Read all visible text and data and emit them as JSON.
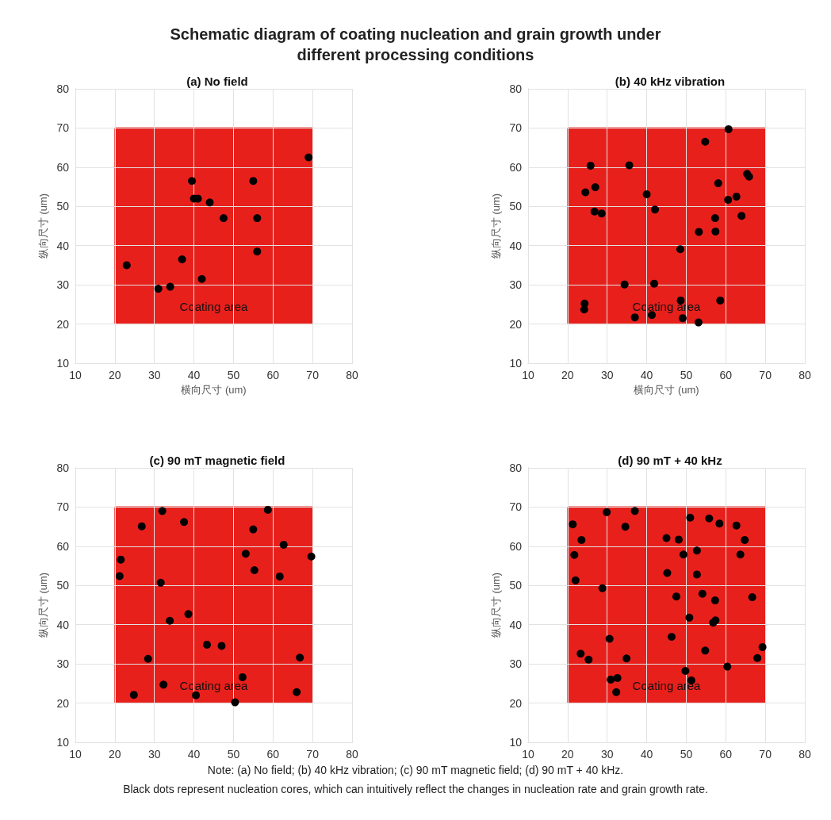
{
  "chart_data": [
    {
      "type": "scatter",
      "title": "(a) No field",
      "xlabel": "横向尺寸 (um)",
      "ylabel": "纵向尺寸 (um)",
      "marker": "circle",
      "grid": true,
      "xlim": [
        10,
        80
      ],
      "ylim": [
        10,
        80
      ],
      "xticks": [
        10,
        20,
        30,
        40,
        50,
        60,
        70,
        80
      ],
      "yticks": [
        10,
        20,
        30,
        40,
        50,
        60,
        70,
        80
      ],
      "annotations": [
        "Schematic diagram of coating nucleation and grain growth under different processing conditions"
      ],
      "series": [
        {
          "type": "line",
          "name": "Coating area",
          "marker": "none",
          "color": "#e8201c",
          "x": [
            20,
            70
          ],
          "values": [
            70,
            70
          ],
          "lower": [
            20,
            20
          ],
          "upper": [
            70,
            70
          ]
        },
        {
          "color": "#000000",
          "x": [
            23,
            31,
            34,
            37,
            42,
            39.5,
            40,
            41,
            44,
            47.5,
            55,
            56,
            56,
            69
          ],
          "values": [
            35,
            29,
            29.5,
            36.5,
            31.5,
            56.5,
            52,
            52,
            51,
            47,
            56.5,
            47,
            38.5,
            62.5
          ]
        }
      ]
    },
    {
      "type": "scatter",
      "title": "(b) 40 kHz vibration",
      "xlabel": "横向尺寸 (um)",
      "ylabel": "纵向尺寸 (um)",
      "marker": "circle",
      "grid": true,
      "xlim": [
        10,
        80
      ],
      "ylim": [
        10,
        80
      ],
      "xticks": [
        10,
        20,
        30,
        40,
        50,
        60,
        70,
        80
      ],
      "yticks": [
        10,
        20,
        30,
        40,
        50,
        60,
        70,
        80
      ],
      "series": [
        {
          "type": "line",
          "name": "Coating area",
          "marker": "none",
          "color": "#e8201c",
          "x": [
            20,
            70
          ],
          "values": [
            70,
            70
          ],
          "lower": [
            20,
            20
          ],
          "upper": [
            70,
            70
          ]
        },
        {
          "color": "#000000",
          "x": [
            25.8,
            35.6,
            27,
            24.5,
            26.8,
            28.6,
            40,
            42.1,
            54.8,
            60.7,
            65.4,
            65.9,
            58.1,
            60.6,
            62.7,
            64,
            57.3,
            57.4,
            53.2,
            48.5,
            34.4,
            41.9,
            58.6,
            48.6,
            24.3,
            24.2,
            37,
            41.3,
            49.1,
            53.1
          ],
          "values": [
            60.4,
            60.5,
            54.9,
            53.6,
            48.7,
            48.2,
            53.1,
            49.2,
            66.5,
            69.7,
            58.3,
            57.6,
            55.9,
            51.7,
            52.5,
            47.6,
            47,
            43.6,
            43.5,
            39.1,
            30.1,
            30.3,
            26,
            26,
            25.2,
            23.7,
            21.7,
            22.3,
            21.5,
            20.4
          ]
        }
      ]
    },
    {
      "type": "scatter",
      "title": "(c) 90 mT magnetic field",
      "ylabel": "纵向尺寸 (um)",
      "marker": "circle",
      "grid": true,
      "xlim": [
        10,
        80
      ],
      "ylim": [
        10,
        80
      ],
      "xticks": [
        10,
        20,
        30,
        40,
        50,
        60,
        70,
        80
      ],
      "yticks": [
        10,
        20,
        30,
        40,
        50,
        60,
        70,
        80
      ],
      "series": [
        {
          "type": "line",
          "name": "Coating area",
          "marker": "none",
          "color": "#e8201c",
          "x": [
            20,
            70
          ],
          "values": [
            70,
            70
          ],
          "lower": [
            20,
            20
          ],
          "upper": [
            70,
            70
          ]
        },
        {
          "color": "#000000",
          "x": [
            32,
            37.5,
            26.8,
            21.5,
            21.2,
            31.6,
            38.6,
            33.9,
            55,
            58.7,
            62.7,
            53.1,
            55.3,
            61.7,
            69.7,
            43.3,
            47,
            28.4,
            66.8,
            52.3,
            32.3,
            24.8,
            40.5,
            50.4,
            66
          ],
          "values": [
            69,
            66.2,
            65.1,
            56.6,
            52.4,
            50.7,
            42.7,
            41,
            64.3,
            69.3,
            60.4,
            58.1,
            53.9,
            52.3,
            57.4,
            34.9,
            34.6,
            31.3,
            31.6,
            26.6,
            24.7,
            22.1,
            22,
            20.2,
            22.8
          ]
        }
      ]
    },
    {
      "type": "scatter",
      "title": "(d) 90 mT + 40 kHz",
      "ylabel": "纵向尺寸 (um)",
      "marker": "circle",
      "grid": true,
      "xlim": [
        10,
        80
      ],
      "ylim": [
        10,
        80
      ],
      "xticks": [
        10,
        20,
        30,
        40,
        50,
        60,
        70,
        80
      ],
      "yticks": [
        10,
        20,
        30,
        40,
        50,
        60,
        70,
        80
      ],
      "annotations": [
        "Note: (a) No field; (b) 40 kHz vibration; (c) 90 mT magnetic field; (d) 90 mT + 40 kHz.",
        "Black dots represent nucleation cores,  which can intuitively reflect the changes in nucleation rate and grain growth rate."
      ],
      "series": [
        {
          "type": "line",
          "name": "Coating area",
          "marker": "none",
          "color": "#e8201c",
          "x": [
            20,
            70
          ],
          "values": [
            70,
            70
          ],
          "lower": [
            20,
            20
          ],
          "upper": [
            70,
            70
          ]
        },
        {
          "color": "#000000",
          "x": [
            21.3,
            29.9,
            37,
            34.6,
            23.5,
            21.7,
            22,
            28.8,
            45,
            48.1,
            51,
            55.8,
            58.4,
            62.7,
            64.8,
            63.7,
            49.3,
            52.7,
            45.2,
            52.7,
            47.5,
            54.1,
            57.3,
            66.7,
            50.8,
            56.8,
            57.4,
            46.3,
            30.6,
            23.3,
            25.3,
            34.9,
            54.8,
            60.4,
            68,
            69.3,
            49.8,
            51.3,
            30.9,
            32.6,
            32.3
          ],
          "values": [
            65.6,
            68.7,
            69,
            65,
            61.6,
            57.8,
            51.3,
            49.3,
            62.1,
            61.7,
            67.3,
            67.1,
            65.8,
            65.3,
            61.6,
            57.9,
            57.9,
            58.9,
            53.2,
            52.8,
            47.2,
            47.9,
            46.2,
            47,
            41.8,
            40.5,
            41.1,
            36.9,
            36.4,
            32.6,
            31.1,
            31.4,
            33.4,
            29.3,
            31.5,
            34.3,
            28.2,
            25.8,
            26,
            26.4,
            22.8
          ]
        }
      ]
    }
  ]
}
